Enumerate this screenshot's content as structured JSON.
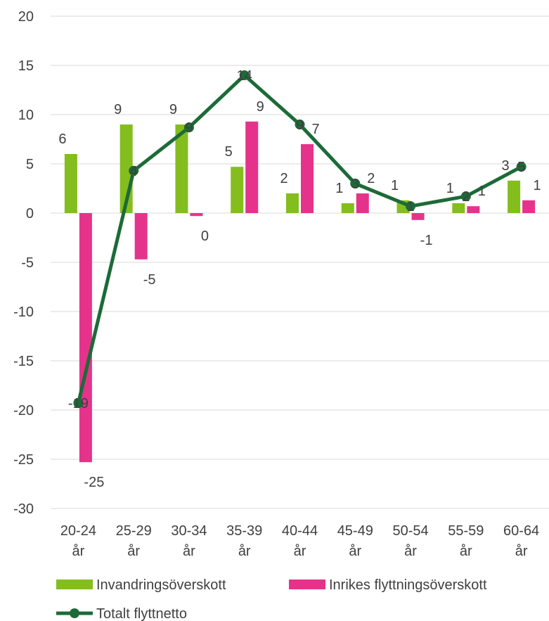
{
  "chart_data": {
    "type": "bar",
    "categories": [
      "20-24 år",
      "25-29 år",
      "30-34 år",
      "35-39 år",
      "40-44 år",
      "45-49 år",
      "50-54 år",
      "55-59 år",
      "60-64 år"
    ],
    "series": [
      {
        "name": "Invandringsöverskott",
        "kind": "bar",
        "color": "#84bd1e",
        "values": [
          6.0,
          9.0,
          9.0,
          4.7,
          2.0,
          1.0,
          1.3,
          1.0,
          3.3
        ],
        "labels": [
          "6",
          "9",
          "9",
          "5",
          "2",
          "1",
          "1",
          "1",
          "3"
        ]
      },
      {
        "name": "Inrikes flyttningsöverskott",
        "kind": "bar",
        "color": "#e5338c",
        "values": [
          -25.3,
          -4.7,
          -0.3,
          9.3,
          7.0,
          2.0,
          -0.7,
          0.7,
          1.3
        ],
        "labels": [
          "-25",
          "-5",
          "0",
          "9",
          "7",
          "2",
          "-1",
          "1",
          "1"
        ]
      },
      {
        "name": "Totalt flyttnetto",
        "kind": "line",
        "color": "#1c6b37",
        "values": [
          -19.3,
          4.3,
          8.7,
          14.0,
          9.0,
          3.0,
          0.7,
          1.7,
          4.7
        ],
        "labels": [
          "-19",
          "4",
          "9",
          "14",
          "9",
          "3",
          "1",
          "2",
          "5"
        ]
      }
    ],
    "yticks": [
      "20",
      "15",
      "10",
      "5",
      "0",
      "-5",
      "-10",
      "-15",
      "-20",
      "-25",
      "-30"
    ],
    "ylim": [
      -30,
      20
    ],
    "grid": true,
    "legend_position": "bottom"
  }
}
